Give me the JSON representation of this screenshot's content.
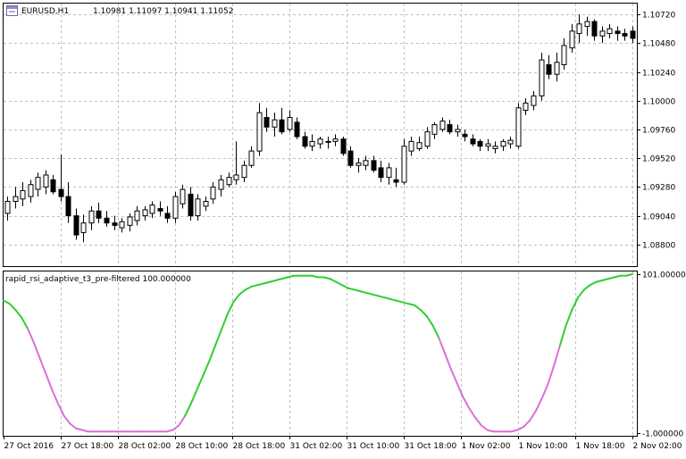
{
  "window": {
    "symbol_label": "EURUSD,H1",
    "ohlc_label": "1.10981 1.11097 1.10941 1.11052",
    "indicator_label": "rapid_rsi_adaptive_t3_pre-filtered 100.000000"
  },
  "icons": {
    "window_menu": "window-menu-icon"
  },
  "colors": {
    "background": "#ffffff",
    "grid": "#c0c0c0",
    "candle_outline": "#000000",
    "bull_fill": "#ffffff",
    "bear_fill": "#000000",
    "indicator_up": "#32cd32",
    "indicator_down": "#da70d6"
  },
  "chart_data": [
    {
      "type": "candlestick",
      "symbol": "EURUSD",
      "timeframe": "H1",
      "y_ticks": [
        "1.10720",
        "1.10480",
        "1.10240",
        "1.10000",
        "1.09760",
        "1.09520",
        "1.09280",
        "1.09040",
        "1.08800"
      ],
      "ylim": [
        1.0862,
        1.1081
      ],
      "x_ticks": [
        "27 Oct 2016",
        "27 Oct 18:00",
        "28 Oct 02:00",
        "28 Oct 10:00",
        "28 Oct 18:00",
        "31 Oct 02:00",
        "31 Oct 10:00",
        "31 Oct 18:00",
        "1 Nov 02:00",
        "1 Nov 10:00",
        "1 Nov 18:00",
        "2 Nov 02:00"
      ],
      "grid": true,
      "candles": [
        [
          1.0906,
          1.092,
          1.09,
          1.0916
        ],
        [
          1.0916,
          1.0928,
          1.091,
          1.092
        ],
        [
          1.0918,
          1.0932,
          1.0912,
          1.0925
        ],
        [
          1.092,
          1.0934,
          1.0915,
          1.093
        ],
        [
          1.0926,
          1.094,
          1.092,
          1.0936
        ],
        [
          1.0928,
          1.0942,
          1.0922,
          1.0938
        ],
        [
          1.0934,
          1.0938,
          1.0922,
          1.0924
        ],
        [
          1.0926,
          1.0955,
          1.0916,
          1.092
        ],
        [
          1.092,
          1.0932,
          1.0898,
          1.0904
        ],
        [
          1.0904,
          1.091,
          1.0884,
          1.0888
        ],
        [
          1.089,
          1.0905,
          1.0882,
          1.0898
        ],
        [
          1.0898,
          1.0912,
          1.0892,
          1.0908
        ],
        [
          1.0908,
          1.0915,
          1.0898,
          1.0902
        ],
        [
          1.0902,
          1.0908,
          1.0895,
          1.0898
        ],
        [
          1.0898,
          1.0904,
          1.0892,
          1.0896
        ],
        [
          1.0894,
          1.0902,
          1.089,
          1.0899
        ],
        [
          1.0896,
          1.0906,
          1.0891,
          1.0903
        ],
        [
          1.09,
          1.0912,
          1.0896,
          1.0908
        ],
        [
          1.0904,
          1.0912,
          1.09,
          1.0909
        ],
        [
          1.0906,
          1.0916,
          1.0902,
          1.0913
        ],
        [
          1.091,
          1.0916,
          1.0904,
          1.0908
        ],
        [
          1.0906,
          1.0912,
          1.0898,
          1.0902
        ],
        [
          1.0902,
          1.0924,
          1.0898,
          1.092
        ],
        [
          1.0914,
          1.093,
          1.091,
          1.0926
        ],
        [
          1.0922,
          1.0928,
          1.09,
          1.0904
        ],
        [
          1.0904,
          1.0922,
          1.09,
          1.0918
        ],
        [
          1.0912,
          1.092,
          1.0908,
          1.0916
        ],
        [
          1.0918,
          1.0932,
          1.0914,
          1.0928
        ],
        [
          1.0926,
          1.0938,
          1.092,
          1.0934
        ],
        [
          1.093,
          1.094,
          1.0928,
          1.0936
        ],
        [
          1.0934,
          1.0966,
          1.093,
          1.0938
        ],
        [
          1.0936,
          1.095,
          1.0932,
          1.0946
        ],
        [
          1.0946,
          1.0962,
          1.0944,
          1.0958
        ],
        [
          1.0958,
          1.0998,
          1.0954,
          1.099
        ],
        [
          1.0986,
          1.0994,
          1.0974,
          1.0978
        ],
        [
          1.0978,
          1.099,
          1.097,
          1.0984
        ],
        [
          1.0984,
          1.0994,
          1.0972,
          1.0974
        ],
        [
          1.0976,
          1.0992,
          1.0974,
          1.0986
        ],
        [
          1.0982,
          1.0986,
          1.0968,
          1.097
        ],
        [
          1.097,
          1.0974,
          1.096,
          1.0962
        ],
        [
          1.0962,
          1.0972,
          1.0958,
          1.0966
        ],
        [
          1.0964,
          1.097,
          1.096,
          1.0968
        ],
        [
          1.0966,
          1.097,
          1.096,
          1.0966
        ],
        [
          1.0966,
          1.0972,
          1.0962,
          1.0968
        ],
        [
          1.0968,
          1.097,
          1.0954,
          1.0956
        ],
        [
          1.0958,
          1.0962,
          1.0944,
          1.0946
        ],
        [
          1.0946,
          1.0952,
          1.094,
          1.0948
        ],
        [
          1.0946,
          1.0954,
          1.0942,
          1.095
        ],
        [
          1.095,
          1.0954,
          1.094,
          1.0942
        ],
        [
          1.0944,
          1.095,
          1.0932,
          1.0936
        ],
        [
          1.0936,
          1.0948,
          1.093,
          1.0944
        ],
        [
          1.0934,
          1.0944,
          1.0928,
          1.0932
        ],
        [
          1.0932,
          1.0968,
          1.093,
          1.0962
        ],
        [
          1.0958,
          1.097,
          1.0954,
          1.0966
        ],
        [
          1.096,
          1.097,
          1.0958,
          1.0965
        ],
        [
          1.0962,
          1.0978,
          1.096,
          1.0974
        ],
        [
          1.0972,
          1.0982,
          1.0968,
          1.098
        ],
        [
          1.0976,
          1.0986,
          1.0974,
          1.0983
        ],
        [
          1.098,
          1.0984,
          1.0972,
          1.0974
        ],
        [
          1.0974,
          1.098,
          1.097,
          1.0976
        ],
        [
          1.0972,
          1.0976,
          1.0966,
          1.097
        ],
        [
          1.0968,
          1.0972,
          1.0962,
          1.0964
        ],
        [
          1.0966,
          1.0968,
          1.0958,
          1.0962
        ],
        [
          1.0962,
          1.0968,
          1.0958,
          1.0964
        ],
        [
          1.096,
          1.0966,
          1.0956,
          1.0962
        ],
        [
          1.0962,
          1.0968,
          1.0958,
          1.0966
        ],
        [
          1.0964,
          1.097,
          1.096,
          1.0967
        ],
        [
          1.0962,
          1.0998,
          1.096,
          1.0994
        ],
        [
          1.0992,
          1.1002,
          1.0988,
          1.0998
        ],
        [
          1.0996,
          1.1008,
          1.0992,
          1.1004
        ],
        [
          1.1004,
          1.104,
          1.1,
          1.1034
        ],
        [
          1.103,
          1.1038,
          1.1018,
          1.1022
        ],
        [
          1.1022,
          1.104,
          1.1016,
          1.1032
        ],
        [
          1.103,
          1.1052,
          1.1026,
          1.1046
        ],
        [
          1.1044,
          1.1064,
          1.104,
          1.1058
        ],
        [
          1.1056,
          1.1072,
          1.1048,
          1.1064
        ],
        [
          1.1062,
          1.107,
          1.1054,
          1.1066
        ],
        [
          1.1066,
          1.1068,
          1.105,
          1.1054
        ],
        [
          1.1054,
          1.1062,
          1.1048,
          1.1058
        ],
        [
          1.1056,
          1.1064,
          1.1052,
          1.106
        ],
        [
          1.1058,
          1.1062,
          1.105,
          1.1056
        ],
        [
          1.1056,
          1.106,
          1.105,
          1.1054
        ],
        [
          1.1058,
          1.1062,
          1.1048,
          1.1052
        ]
      ]
    },
    {
      "type": "line",
      "name": "rapid_rsi_adaptive_t3_pre-filtered",
      "y_ticks": [
        "101.000000",
        "-1.000000"
      ],
      "ylim": [
        -1,
        101
      ],
      "grid": true,
      "values": [
        84,
        82,
        78,
        73,
        66,
        57,
        47,
        37,
        27,
        18,
        10,
        5,
        2,
        1,
        0,
        0,
        0,
        0,
        0,
        0,
        0,
        0,
        0,
        0,
        0,
        0,
        0,
        0,
        1,
        4,
        10,
        18,
        27,
        36,
        45,
        55,
        65,
        75,
        83,
        88,
        91,
        93,
        94,
        95,
        96,
        97,
        98,
        99,
        100,
        100,
        100,
        100,
        99,
        99,
        98,
        96,
        94,
        92,
        91,
        90,
        89,
        88,
        87,
        86,
        85,
        84,
        83,
        82,
        81,
        78,
        74,
        68,
        60,
        50,
        40,
        31,
        22,
        15,
        9,
        4,
        1,
        0,
        0,
        0,
        0,
        1,
        3,
        7,
        13,
        21,
        30,
        42,
        55,
        68,
        78,
        86,
        91,
        94,
        96,
        97,
        98,
        99,
        100,
        100,
        101
      ],
      "segments_falling": [
        [
          4,
          30
        ],
        [
          72,
          92
        ]
      ]
    }
  ]
}
